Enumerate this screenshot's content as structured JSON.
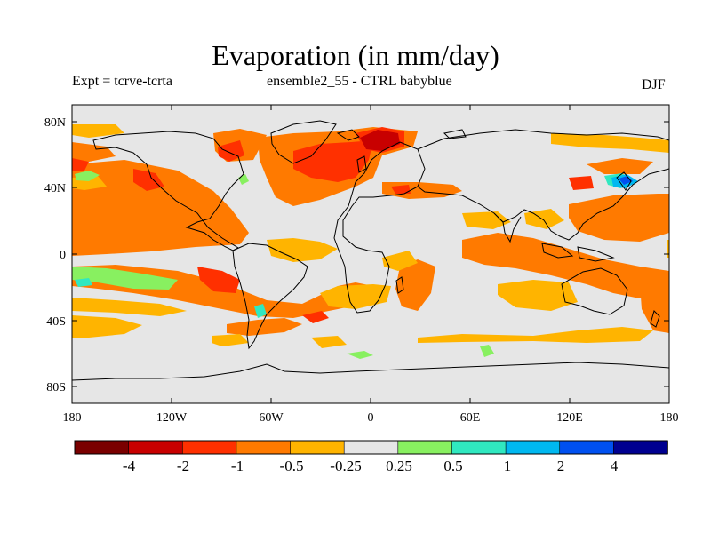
{
  "header": {
    "title": "Evaporation (in mm/day)",
    "left_label": "Expt = tcrve-tcrta",
    "center_label": "ensemble2_55 - CTRL babyblue",
    "right_label": "DJF"
  },
  "map": {
    "projection": "cylindrical equidistant",
    "lon_range": [
      -180,
      180
    ],
    "lat_range": [
      -90,
      90
    ],
    "lon_ticks": [
      "180",
      "120W",
      "60W",
      "0",
      "60E",
      "120E",
      "180"
    ],
    "lat_ticks": [
      "80N",
      "40N",
      "0",
      "40S",
      "80S"
    ],
    "background_color": "#e6e6e6",
    "coastline_color": "#000000"
  },
  "colorbar": {
    "colors": [
      "#7a0000",
      "#c80000",
      "#ff3000",
      "#ff7a00",
      "#ffb400",
      "#e6e6e6",
      "#88f060",
      "#30e8c0",
      "#00b8f0",
      "#0050f0",
      "#000090"
    ],
    "labels": [
      "-4",
      "-2",
      "-1",
      "-0.5",
      "-0.25",
      "0.25",
      "0.5",
      "1",
      "2",
      "4"
    ]
  }
}
